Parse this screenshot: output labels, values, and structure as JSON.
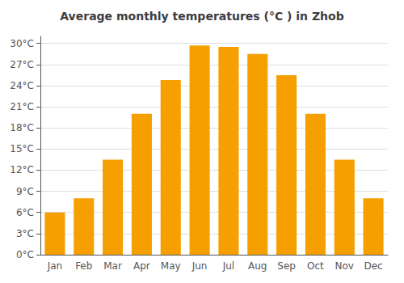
{
  "chart_data": {
    "type": "bar",
    "title": "Average monthly temperatures (°C ) in Zhob",
    "categories": [
      "Jan",
      "Feb",
      "Mar",
      "Apr",
      "May",
      "Jun",
      "Jul",
      "Aug",
      "Sep",
      "Oct",
      "Nov",
      "Dec"
    ],
    "values": [
      6,
      8,
      13.5,
      20,
      24.8,
      29.7,
      29.5,
      28.5,
      25.5,
      20,
      13.5,
      8
    ],
    "color": "#F5A000",
    "ylim": [
      0,
      31
    ],
    "yticks": [
      {
        "value": 0,
        "label": "0°C"
      },
      {
        "value": 3,
        "label": "3°C"
      },
      {
        "value": 6,
        "label": "6°C"
      },
      {
        "value": 9,
        "label": "9°C"
      },
      {
        "value": 12,
        "label": "12°C"
      },
      {
        "value": 15,
        "label": "15°C"
      },
      {
        "value": 18,
        "label": "18°C"
      },
      {
        "value": 21,
        "label": "21°C"
      },
      {
        "value": 24,
        "label": "24°C"
      },
      {
        "value": 27,
        "label": "27°C"
      },
      {
        "value": 30,
        "label": "30°C"
      }
    ],
    "grid": true
  }
}
